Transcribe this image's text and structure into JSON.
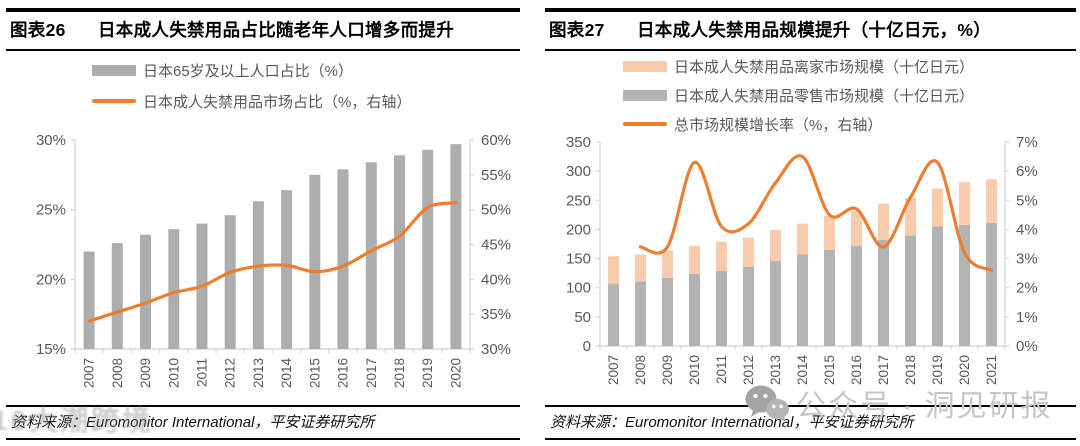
{
  "panels": [
    {
      "header_label": "图表26",
      "title": "日本成人失禁用品占比随老年人口增多而提升",
      "legend": [
        "日本65岁及以上人口占比（%）",
        "日本成人失禁用品市场占比（%，右轴）"
      ],
      "source": "资料来源：Euromonitor International，平安证券研究所"
    },
    {
      "header_label": "图表27",
      "title": "日本成人失禁用品规模提升（十亿日元，%）",
      "legend": [
        "日本成人失禁用品离家市场规模（十亿日元）",
        "日本成人失禁用品零售市场规模（十亿日元）",
        "总市场规模增长率（%，右轴）"
      ],
      "source": "资料来源：Euromonitor International，平安证券研究所"
    }
  ],
  "watermarks": {
    "left_text": "16大潮跨境",
    "right_text": "公众号 · 洞见研报",
    "right_icon": "wechat-icon"
  },
  "colors": {
    "accent_orange": "#ED7D31",
    "bar_gray": "#ADADAD",
    "bar_gray_light": "#B3B3B3",
    "bar_peach": "#F8CBAD",
    "axis_line": "#D9D9D9",
    "axis_text": "#595959"
  },
  "chart_data": [
    {
      "type": "bar",
      "subtype": "bar+line-dual-axis",
      "title": "日本成人失禁用品占比随老年人口增多而提升",
      "categories": [
        "2007",
        "2008",
        "2009",
        "2010",
        "2011",
        "2012",
        "2013",
        "2014",
        "2015",
        "2016",
        "2017",
        "2018",
        "2019",
        "2020"
      ],
      "series": [
        {
          "name": "日本65岁及以上人口占比（%）",
          "type": "bar",
          "axis": "left",
          "color": "#ADADAD",
          "values": [
            22.0,
            22.6,
            23.2,
            23.6,
            24.0,
            24.6,
            25.6,
            26.4,
            27.5,
            27.9,
            28.4,
            28.9,
            29.3,
            29.7
          ]
        },
        {
          "name": "日本成人失禁用品市场占比（%，右轴）",
          "type": "line",
          "axis": "right",
          "color": "#ED7D31",
          "values": [
            34.0,
            35.3,
            36.6,
            38.1,
            39.0,
            41.0,
            41.9,
            42.0,
            41.1,
            41.9,
            44.1,
            46.2,
            50.3,
            51.0
          ]
        }
      ],
      "left_axis": {
        "min": 15,
        "max": 30,
        "tick_values": [
          15,
          20,
          25,
          30
        ],
        "tick_labels": [
          "15%",
          "20%",
          "25%",
          "30%"
        ]
      },
      "right_axis": {
        "min": 30,
        "max": 60,
        "tick_values": [
          30,
          35,
          40,
          45,
          50,
          55,
          60
        ],
        "tick_labels": [
          "30%",
          "35%",
          "40%",
          "45%",
          "50%",
          "55%",
          "60%"
        ]
      },
      "grid": false,
      "legend_position": "top"
    },
    {
      "type": "bar",
      "subtype": "stacked-bar+line-dual-axis",
      "title": "日本成人失禁用品规模提升（十亿日元，%）",
      "categories": [
        "2007",
        "2008",
        "2009",
        "2010",
        "2011",
        "2012",
        "2013",
        "2014",
        "2015",
        "2016",
        "2017",
        "2018",
        "2019",
        "2020",
        "2021"
      ],
      "series": [
        {
          "name": "日本成人失禁用品离家市场规模（十亿日元）",
          "type": "bar",
          "stack": "top",
          "axis": "left",
          "color": "#F8CBAD",
          "values": [
            47,
            46,
            47,
            48,
            50,
            50,
            53,
            53,
            58,
            60,
            62,
            64,
            65,
            73,
            75
          ]
        },
        {
          "name": "日本成人失禁用品零售市场规模（十亿日元）",
          "type": "bar",
          "stack": "bottom",
          "axis": "left",
          "color": "#B3B3B3",
          "values": [
            107,
            111,
            117,
            124,
            129,
            136,
            146,
            157,
            165,
            172,
            182,
            190,
            205,
            208,
            211
          ]
        },
        {
          "name": "总市场规模增长率（%，右轴）",
          "type": "line",
          "axis": "right",
          "color": "#ED7D31",
          "values": [
            null,
            3.4,
            3.4,
            6.3,
            4.1,
            4.2,
            5.6,
            6.5,
            4.5,
            4.7,
            3.4,
            5.1,
            6.3,
            3.2,
            2.6
          ]
        }
      ],
      "left_axis": {
        "min": 0,
        "max": 350,
        "tick_values": [
          0,
          50,
          100,
          150,
          200,
          250,
          300,
          350
        ],
        "tick_labels": [
          "0",
          "50",
          "100",
          "150",
          "200",
          "250",
          "300",
          "350"
        ]
      },
      "right_axis": {
        "min": 0,
        "max": 7,
        "tick_values": [
          0,
          1,
          2,
          3,
          4,
          5,
          6,
          7
        ],
        "tick_labels": [
          "0%",
          "1%",
          "2%",
          "3%",
          "4%",
          "5%",
          "6%",
          "7%"
        ]
      },
      "grid": false,
      "legend_position": "top"
    }
  ]
}
